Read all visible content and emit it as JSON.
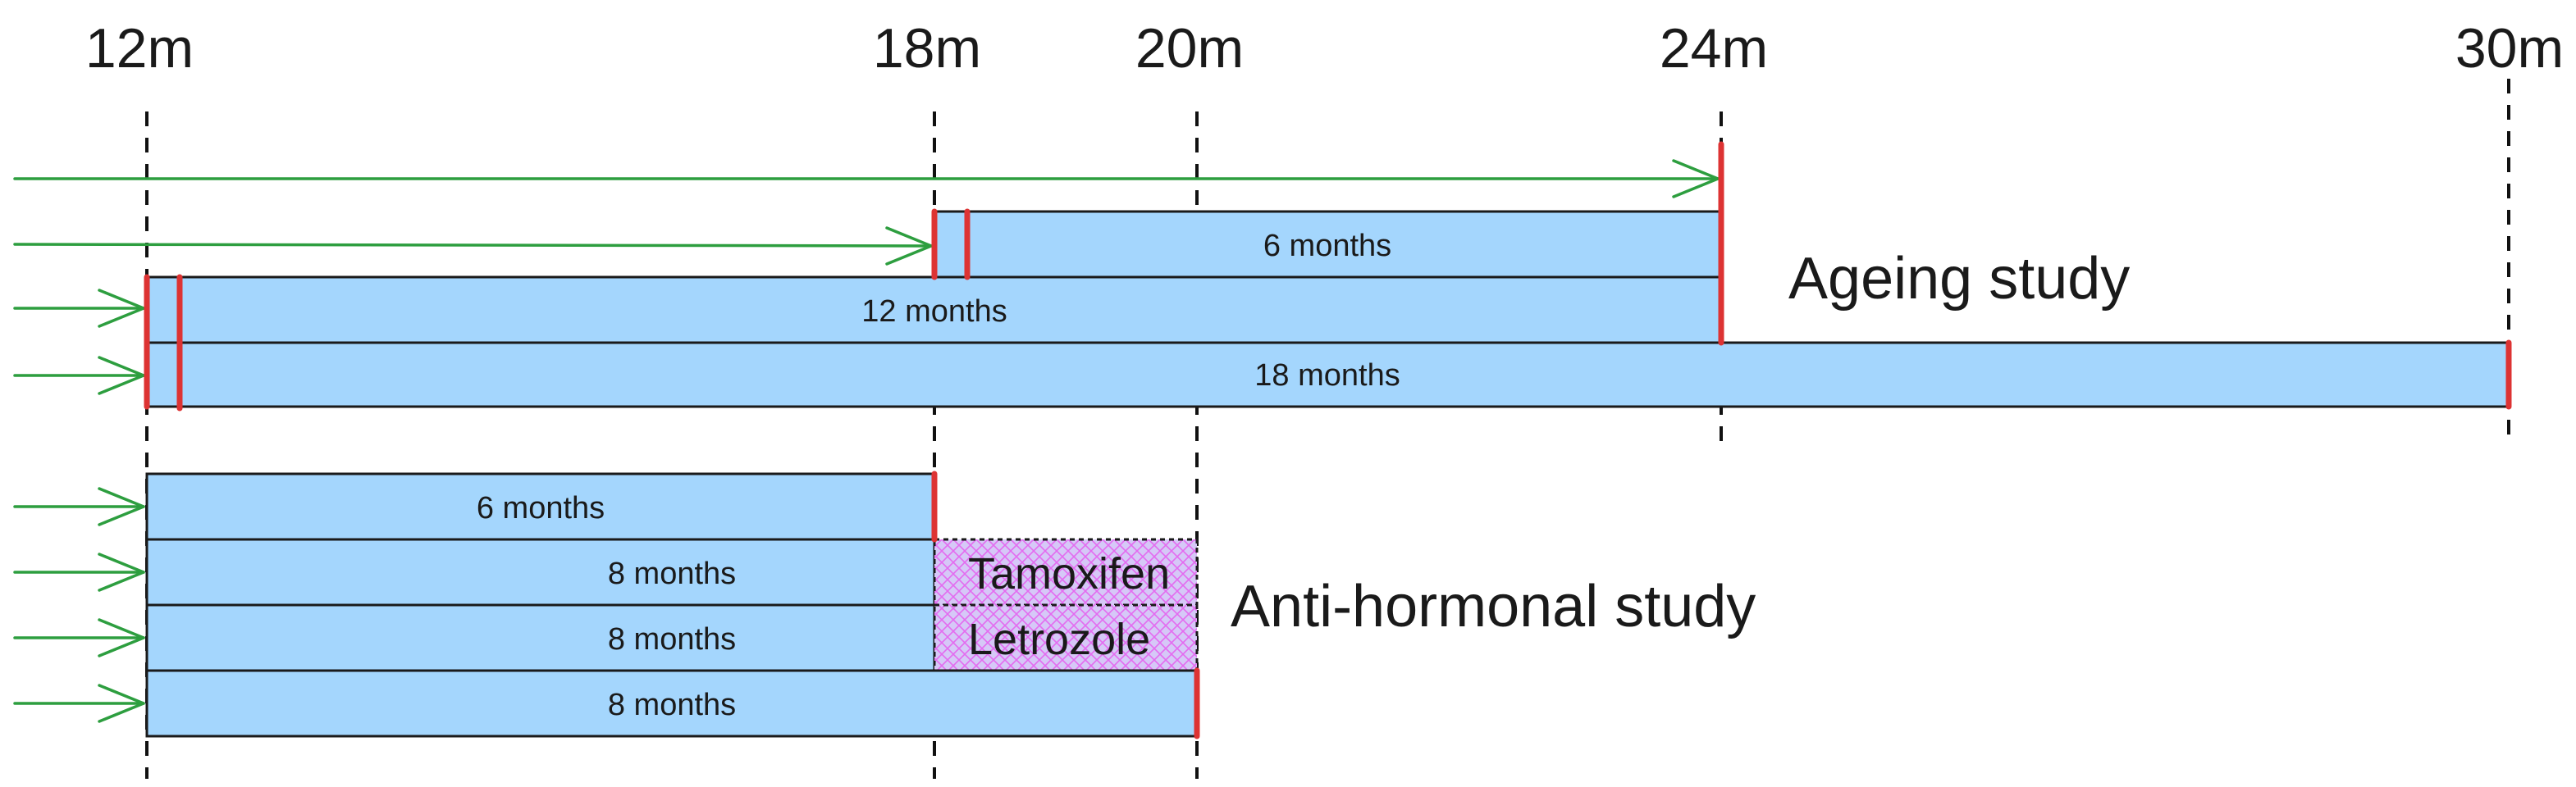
{
  "colors": {
    "bar_fill": "#a4d6fd",
    "bar_stroke": "#1a1a1a",
    "arrow": "#2d9e3f",
    "marker": "#dd3333",
    "hatch": "#e46bf0",
    "hatch_bg": "#d6c8f7",
    "grid": "#111111"
  },
  "time_axis": {
    "ticks": [
      "12m",
      "18m",
      "20m",
      "24m",
      "30m"
    ]
  },
  "studies": [
    {
      "label": "Ageing study"
    },
    {
      "label": "Anti-hormonal study"
    }
  ],
  "bars": {
    "ageing": [
      {
        "label": "6 months"
      },
      {
        "label": "12 months"
      },
      {
        "label": "18 months"
      }
    ],
    "antihormonal": [
      {
        "label": "6 months"
      },
      {
        "label": "8 months"
      },
      {
        "label": "8 months"
      },
      {
        "label": "8 months"
      }
    ]
  },
  "treatments": [
    "Tamoxifen",
    "Letrozole"
  ]
}
